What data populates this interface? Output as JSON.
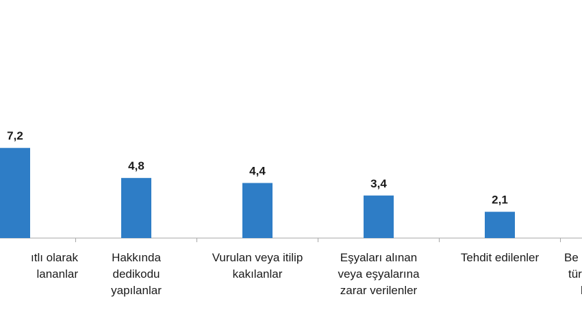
{
  "chart_data": {
    "type": "bar",
    "title": "",
    "xlabel": "",
    "ylabel": "",
    "bar_color": "#2e7dc6",
    "grid": false,
    "ylim": [
      0,
      10
    ],
    "categories": [
      [
        "ıtlı olarak",
        "lananlar"
      ],
      [
        "Hakkında",
        "dedikodu",
        "yapılanlar"
      ],
      [
        "Vurulan veya itilip",
        "kakılanlar"
      ],
      [
        "Eşyaları alınan",
        "veya eşyalarına",
        "zarar verilenler"
      ],
      [
        "Tehdit edilenler"
      ],
      [
        "Be",
        "tür",
        "l"
      ]
    ],
    "values": [
      7.2,
      4.8,
      4.4,
      3.4,
      2.1,
      null
    ],
    "value_labels": [
      "7,2",
      "4,8",
      "4,4",
      "3,4",
      "2,1",
      ""
    ]
  }
}
